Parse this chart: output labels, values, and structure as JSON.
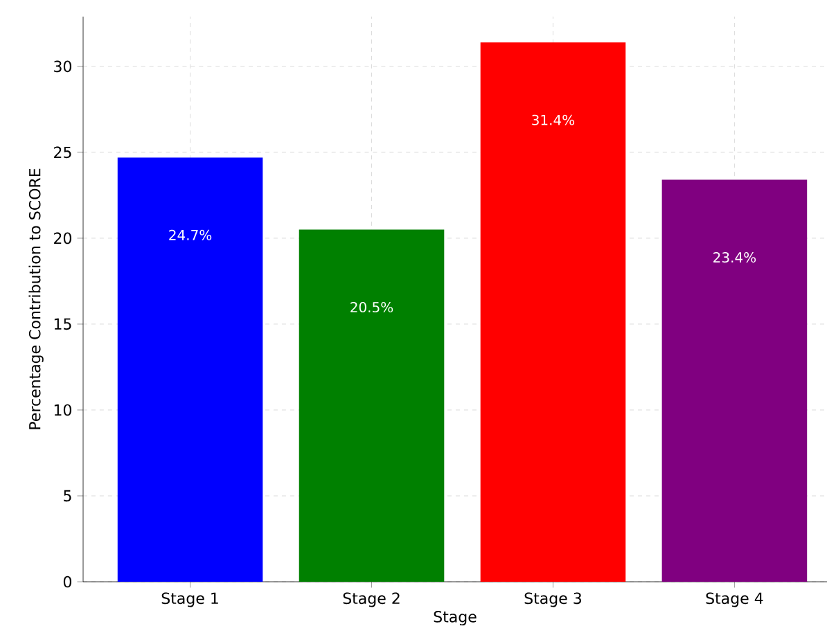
{
  "chart_data": {
    "type": "bar",
    "xlabel": "Stage",
    "ylabel": "Percentage Contribution to SCORE",
    "categories": [
      "Stage 1",
      "Stage 2",
      "Stage 3",
      "Stage 4"
    ],
    "values": [
      24.7,
      20.5,
      31.4,
      23.4
    ],
    "colors": [
      "#0000ff",
      "#008000",
      "#ff0000",
      "#800080"
    ],
    "value_labels": [
      "24.7%",
      "20.5%",
      "31.4%",
      "23.4%"
    ],
    "ylim": [
      0,
      32.9
    ],
    "yticks": [
      0,
      5,
      10,
      15,
      20,
      25,
      30
    ],
    "grid": true
  }
}
